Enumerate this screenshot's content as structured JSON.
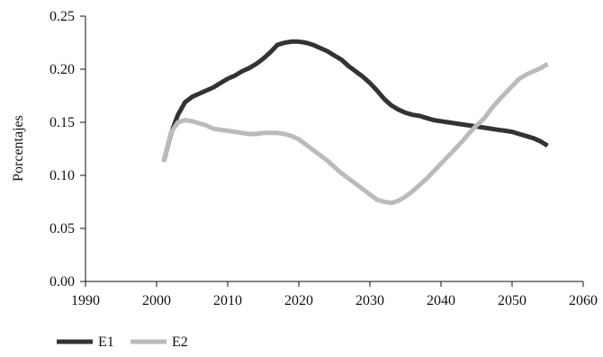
{
  "chart_data": {
    "type": "line",
    "title": "",
    "xlabel": "",
    "ylabel": "Porcentajes",
    "xlim": [
      1990,
      2060
    ],
    "ylim": [
      0,
      0.25
    ],
    "xticks": [
      1990,
      2000,
      2010,
      2020,
      2030,
      2040,
      2050,
      2060
    ],
    "xtick_labels": [
      "1990",
      "2000",
      "2010",
      "2020",
      "2030",
      "2040",
      "2050",
      "2060"
    ],
    "yticks": [
      0,
      0.05,
      0.1,
      0.15,
      0.2,
      0.25
    ],
    "ytick_labels": [
      "0.00",
      "0.05",
      "0.10",
      "0.15",
      "0.20",
      "0.25"
    ],
    "grid": false,
    "legend": "bottom-left",
    "series": [
      {
        "name": "E1",
        "color": "#333333",
        "x": [
          2001,
          2002,
          2003,
          2004,
          2005,
          2006,
          2007,
          2008,
          2009,
          2010,
          2011,
          2012,
          2013,
          2014,
          2015,
          2016,
          2017,
          2018,
          2019,
          2020,
          2021,
          2022,
          2023,
          2024,
          2025,
          2026,
          2027,
          2028,
          2029,
          2030,
          2031,
          2032,
          2033,
          2034,
          2035,
          2036,
          2037,
          2038,
          2039,
          2040,
          2041,
          2042,
          2043,
          2044,
          2045,
          2046,
          2047,
          2048,
          2049,
          2050,
          2051,
          2052,
          2053,
          2054,
          2055
        ],
        "values": [
          0.113,
          0.139,
          0.157,
          0.169,
          0.174,
          0.177,
          0.18,
          0.183,
          0.187,
          0.191,
          0.194,
          0.198,
          0.201,
          0.205,
          0.21,
          0.216,
          0.223,
          0.225,
          0.226,
          0.226,
          0.225,
          0.223,
          0.22,
          0.217,
          0.213,
          0.209,
          0.203,
          0.198,
          0.193,
          0.187,
          0.18,
          0.172,
          0.166,
          0.162,
          0.159,
          0.157,
          0.156,
          0.154,
          0.152,
          0.151,
          0.15,
          0.149,
          0.148,
          0.147,
          0.146,
          0.145,
          0.144,
          0.143,
          0.142,
          0.141,
          0.139,
          0.137,
          0.135,
          0.132,
          0.128
        ]
      },
      {
        "name": "E2",
        "color": "#bbbbbb",
        "x": [
          2001,
          2002,
          2003,
          2004,
          2005,
          2006,
          2007,
          2008,
          2009,
          2010,
          2011,
          2012,
          2013,
          2014,
          2015,
          2016,
          2017,
          2018,
          2019,
          2020,
          2021,
          2022,
          2023,
          2024,
          2025,
          2026,
          2027,
          2028,
          2029,
          2030,
          2031,
          2032,
          2033,
          2034,
          2035,
          2036,
          2037,
          2038,
          2039,
          2040,
          2041,
          2042,
          2043,
          2044,
          2045,
          2046,
          2047,
          2048,
          2049,
          2050,
          2051,
          2052,
          2053,
          2054,
          2055
        ],
        "values": [
          0.113,
          0.14,
          0.15,
          0.152,
          0.151,
          0.149,
          0.147,
          0.144,
          0.143,
          0.142,
          0.141,
          0.14,
          0.139,
          0.139,
          0.14,
          0.14,
          0.14,
          0.139,
          0.137,
          0.134,
          0.129,
          0.124,
          0.119,
          0.114,
          0.108,
          0.102,
          0.097,
          0.092,
          0.087,
          0.082,
          0.077,
          0.075,
          0.074,
          0.076,
          0.08,
          0.085,
          0.091,
          0.097,
          0.104,
          0.111,
          0.118,
          0.125,
          0.132,
          0.14,
          0.147,
          0.153,
          0.162,
          0.17,
          0.177,
          0.184,
          0.191,
          0.195,
          0.198,
          0.201,
          0.205
        ]
      }
    ]
  }
}
